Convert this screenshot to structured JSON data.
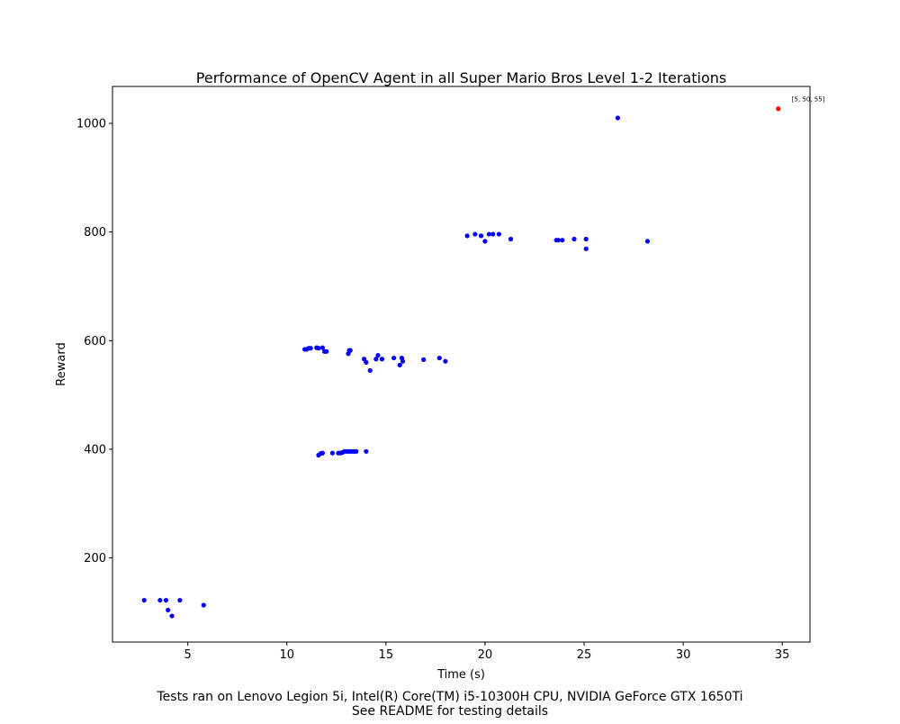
{
  "chart_data": {
    "type": "scatter",
    "title": "Performance of OpenCV Agent in all Super Mario Bros Level 1-2 Iterations",
    "xlabel": "Time (s)",
    "ylabel": "Reward",
    "xlim": [
      1.2,
      36.4
    ],
    "ylim": [
      45,
      1068
    ],
    "xticks": [
      5,
      10,
      15,
      20,
      25,
      30,
      35
    ],
    "yticks": [
      200,
      400,
      600,
      800,
      1000
    ],
    "grid": false,
    "colors": {
      "points": "#0000ff",
      "highlight": "#ff0000"
    },
    "series": [
      {
        "color": "#0000ff",
        "points": [
          [
            2.8,
            122
          ],
          [
            3.6,
            122
          ],
          [
            3.9,
            122
          ],
          [
            4.6,
            122
          ],
          [
            4.0,
            104
          ],
          [
            4.2,
            93
          ],
          [
            5.8,
            113
          ],
          [
            11.6,
            389
          ],
          [
            11.7,
            392
          ],
          [
            11.8,
            393
          ],
          [
            12.3,
            393
          ],
          [
            12.6,
            393
          ],
          [
            12.7,
            393
          ],
          [
            12.8,
            394
          ],
          [
            12.9,
            396
          ],
          [
            13.0,
            396
          ],
          [
            13.1,
            396
          ],
          [
            13.2,
            396
          ],
          [
            13.3,
            396
          ],
          [
            13.4,
            396
          ],
          [
            13.5,
            396
          ],
          [
            14.0,
            396
          ],
          [
            10.9,
            584
          ],
          [
            11.0,
            584
          ],
          [
            11.1,
            586
          ],
          [
            11.2,
            586
          ],
          [
            11.5,
            587
          ],
          [
            11.6,
            586
          ],
          [
            11.8,
            587
          ],
          [
            11.9,
            580
          ],
          [
            12.0,
            580
          ],
          [
            13.1,
            576
          ],
          [
            13.15,
            582
          ],
          [
            13.2,
            582
          ],
          [
            13.9,
            566
          ],
          [
            14.0,
            560
          ],
          [
            14.2,
            545
          ],
          [
            14.5,
            566
          ],
          [
            14.6,
            573
          ],
          [
            14.8,
            566
          ],
          [
            15.4,
            568
          ],
          [
            15.7,
            555
          ],
          [
            15.8,
            568
          ],
          [
            15.85,
            562
          ],
          [
            16.9,
            565
          ],
          [
            17.7,
            568
          ],
          [
            18.0,
            562
          ],
          [
            19.1,
            793
          ],
          [
            19.5,
            796
          ],
          [
            19.8,
            793
          ],
          [
            20.0,
            783
          ],
          [
            20.2,
            796
          ],
          [
            20.4,
            796
          ],
          [
            20.7,
            796
          ],
          [
            21.3,
            787
          ],
          [
            23.6,
            785
          ],
          [
            23.7,
            785
          ],
          [
            23.9,
            785
          ],
          [
            24.5,
            787
          ],
          [
            25.1,
            787
          ],
          [
            25.1,
            769
          ],
          [
            28.2,
            783
          ],
          [
            26.7,
            1010
          ]
        ]
      },
      {
        "color": "#ff0000",
        "points": [
          [
            34.8,
            1027
          ]
        ]
      }
    ],
    "annotations": [
      {
        "text": "[5, 50, 55]",
        "x": 34.8,
        "y": 1027
      }
    ]
  },
  "caption": {
    "line1": "Tests ran on Lenovo Legion 5i, Intel(R) Core(TM) i5-10300H CPU, NVIDIA GeForce GTX 1650Ti",
    "line2": "See README for testing details"
  }
}
